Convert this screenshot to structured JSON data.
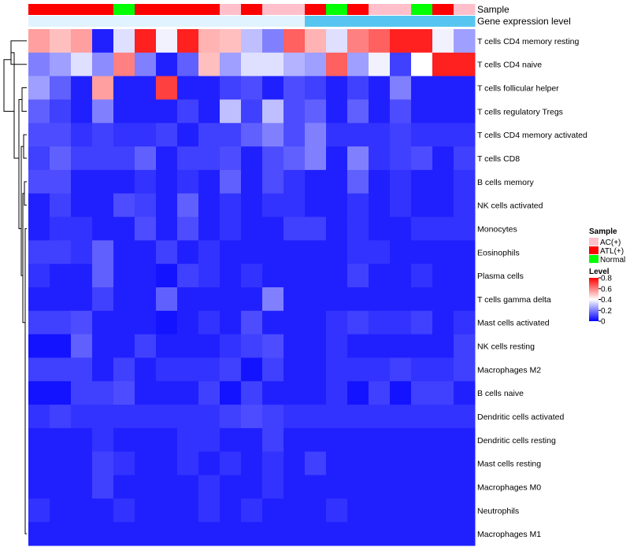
{
  "chart_data": {
    "type": "heatmap",
    "annotation_tracks": [
      {
        "name": "Sample",
        "values": [
          "ATL(+)",
          "ATL(+)",
          "ATL(+)",
          "ATL(+)",
          "Normal",
          "ATL(+)",
          "ATL(+)",
          "ATL(+)",
          "ATL(+)",
          "AC(+)",
          "ATL(+)",
          "AC(+)",
          "AC(+)",
          "ATL(+)",
          "Normal",
          "ATL(+)",
          "AC(+)",
          "AC(+)",
          "Normal",
          "ATL(+)",
          "AC(+)"
        ]
      },
      {
        "name": "Gene expression level",
        "values": [
          "low",
          "low",
          "low",
          "low",
          "low",
          "low",
          "low",
          "low",
          "low",
          "low",
          "low",
          "low",
          "low",
          "high",
          "high",
          "high",
          "high",
          "high",
          "high",
          "high",
          "high"
        ]
      }
    ],
    "rows": [
      "T cells CD4 memory resting",
      "T cells CD4 naive",
      "T cells follicular helper",
      "T cells regulatory  Tregs",
      "T cells CD4 memory activated",
      "T cells CD8",
      "B cells memory",
      "NK cells activated",
      "Monocytes",
      "Eosinophils",
      "Plasma cells",
      "T cells gamma delta",
      "Mast cells activated",
      "NK cells resting",
      "Macrophages M2",
      "B cells naive",
      "Dendritic cells activated",
      "Dendritic cells resting",
      "Mast cells resting",
      "Macrophages M0",
      "Neutrophils",
      "Macrophages M1"
    ],
    "values": [
      [
        0.55,
        0.5,
        0.55,
        0.05,
        0.35,
        0.75,
        0.38,
        0.75,
        0.52,
        0.5,
        0.3,
        0.2,
        0.65,
        0.52,
        0.35,
        0.6,
        0.65,
        0.75,
        0.75,
        0.38,
        0.25
      ],
      [
        0.2,
        0.25,
        0.35,
        0.22,
        0.6,
        0.2,
        0.05,
        0.15,
        0.5,
        0.25,
        0.35,
        0.35,
        0.28,
        0.25,
        0.65,
        0.25,
        0.38,
        0.1,
        0.4,
        0.75,
        0.75
      ],
      [
        0.25,
        0.15,
        0.05,
        0.55,
        0.05,
        0.05,
        0.7,
        0.05,
        0.05,
        0.1,
        0.12,
        0.05,
        0.12,
        0.1,
        0.05,
        0.1,
        0.05,
        0.2,
        0.05,
        0.05,
        0.05
      ],
      [
        0.15,
        0.1,
        0.05,
        0.2,
        0.05,
        0.05,
        0.05,
        0.1,
        0.05,
        0.3,
        0.1,
        0.3,
        0.12,
        0.15,
        0.05,
        0.15,
        0.05,
        0.12,
        0.05,
        0.05,
        0.05
      ],
      [
        0.12,
        0.12,
        0.08,
        0.1,
        0.08,
        0.08,
        0.1,
        0.05,
        0.1,
        0.1,
        0.15,
        0.2,
        0.12,
        0.2,
        0.08,
        0.08,
        0.08,
        0.1,
        0.08,
        0.08,
        0.08
      ],
      [
        0.1,
        0.15,
        0.1,
        0.1,
        0.1,
        0.15,
        0.05,
        0.1,
        0.1,
        0.12,
        0.05,
        0.12,
        0.15,
        0.2,
        0.05,
        0.2,
        0.08,
        0.1,
        0.12,
        0.05,
        0.1
      ],
      [
        0.12,
        0.12,
        0.05,
        0.05,
        0.05,
        0.08,
        0.05,
        0.08,
        0.05,
        0.15,
        0.05,
        0.12,
        0.08,
        0.05,
        0.05,
        0.15,
        0.05,
        0.08,
        0.05,
        0.05,
        0.08
      ],
      [
        0.05,
        0.1,
        0.05,
        0.05,
        0.12,
        0.1,
        0.05,
        0.15,
        0.05,
        0.08,
        0.05,
        0.08,
        0.08,
        0.05,
        0.05,
        0.08,
        0.05,
        0.08,
        0.05,
        0.05,
        0.08
      ],
      [
        0.05,
        0.08,
        0.08,
        0.05,
        0.05,
        0.12,
        0.05,
        0.12,
        0.05,
        0.08,
        0.05,
        0.05,
        0.1,
        0.1,
        0.05,
        0.08,
        0.05,
        0.05,
        0.08,
        0.08,
        0.08
      ],
      [
        0.1,
        0.1,
        0.08,
        0.15,
        0.05,
        0.05,
        0.1,
        0.05,
        0.08,
        0.05,
        0.05,
        0.05,
        0.05,
        0.05,
        0.05,
        0.08,
        0.08,
        0.05,
        0.05,
        0.05,
        0.05
      ],
      [
        0.08,
        0.05,
        0.05,
        0.15,
        0.05,
        0.05,
        0.03,
        0.1,
        0.08,
        0.05,
        0.08,
        0.05,
        0.05,
        0.05,
        0.05,
        0.1,
        0.05,
        0.05,
        0.08,
        0.05,
        0.05
      ],
      [
        0.05,
        0.05,
        0.05,
        0.1,
        0.05,
        0.05,
        0.15,
        0.05,
        0.05,
        0.05,
        0.05,
        0.2,
        0.05,
        0.05,
        0.05,
        0.05,
        0.05,
        0.05,
        0.05,
        0.05,
        0.05
      ],
      [
        0.1,
        0.1,
        0.12,
        0.05,
        0.05,
        0.05,
        0.03,
        0.05,
        0.08,
        0.05,
        0.12,
        0.05,
        0.05,
        0.05,
        0.08,
        0.1,
        0.08,
        0.08,
        0.1,
        0.05,
        0.08
      ],
      [
        0.03,
        0.03,
        0.15,
        0.05,
        0.05,
        0.1,
        0.05,
        0.05,
        0.05,
        0.08,
        0.1,
        0.12,
        0.05,
        0.05,
        0.08,
        0.05,
        0.05,
        0.05,
        0.05,
        0.05,
        0.1
      ],
      [
        0.1,
        0.1,
        0.1,
        0.05,
        0.1,
        0.05,
        0.08,
        0.08,
        0.08,
        0.1,
        0.03,
        0.1,
        0.05,
        0.05,
        0.08,
        0.08,
        0.08,
        0.1,
        0.08,
        0.08,
        0.1
      ],
      [
        0.03,
        0.03,
        0.1,
        0.1,
        0.12,
        0.05,
        0.05,
        0.05,
        0.1,
        0.03,
        0.1,
        0.05,
        0.05,
        0.05,
        0.08,
        0.03,
        0.1,
        0.03,
        0.1,
        0.1,
        0.05
      ],
      [
        0.08,
        0.1,
        0.08,
        0.08,
        0.08,
        0.08,
        0.08,
        0.08,
        0.08,
        0.1,
        0.12,
        0.1,
        0.08,
        0.08,
        0.08,
        0.08,
        0.08,
        0.08,
        0.08,
        0.08,
        0.08
      ],
      [
        0.05,
        0.05,
        0.05,
        0.08,
        0.05,
        0.05,
        0.05,
        0.08,
        0.08,
        0.05,
        0.05,
        0.1,
        0.05,
        0.05,
        0.05,
        0.05,
        0.05,
        0.05,
        0.05,
        0.05,
        0.05
      ],
      [
        0.05,
        0.05,
        0.05,
        0.1,
        0.08,
        0.05,
        0.05,
        0.08,
        0.05,
        0.08,
        0.05,
        0.08,
        0.05,
        0.1,
        0.05,
        0.05,
        0.05,
        0.05,
        0.05,
        0.05,
        0.05
      ],
      [
        0.05,
        0.05,
        0.05,
        0.1,
        0.05,
        0.05,
        0.05,
        0.05,
        0.08,
        0.05,
        0.05,
        0.08,
        0.05,
        0.05,
        0.05,
        0.05,
        0.05,
        0.05,
        0.05,
        0.05,
        0.05
      ],
      [
        0.08,
        0.05,
        0.05,
        0.05,
        0.08,
        0.05,
        0.05,
        0.05,
        0.08,
        0.05,
        0.08,
        0.05,
        0.05,
        0.05,
        0.08,
        0.05,
        0.05,
        0.05,
        0.05,
        0.05,
        0.05
      ],
      [
        0.05,
        0.05,
        0.05,
        0.05,
        0.05,
        0.05,
        0.05,
        0.05,
        0.05,
        0.05,
        0.05,
        0.05,
        0.05,
        0.05,
        0.05,
        0.05,
        0.05,
        0.05,
        0.05,
        0.05,
        0.05
      ]
    ],
    "color_scale": {
      "min": 0,
      "max": 0.8,
      "colors": [
        "#0000ff",
        "#ffffff",
        "#ff0000"
      ]
    },
    "legend": {
      "sample_title": "Sample",
      "sample_items": [
        {
          "label": "AC(+)",
          "color": "#ffc0cb"
        },
        {
          "label": "ATL(+)",
          "color": "#ff0000"
        },
        {
          "label": "Normal",
          "color": "#00ff00"
        }
      ],
      "level_title": "Level",
      "level_ticks": [
        "0.8",
        "0.6",
        "0.4",
        "0.2",
        "0"
      ],
      "placement": "right"
    },
    "gene_level_colors": {
      "low": "#e0f3ff",
      "high": "#56c6f0"
    },
    "dendrogram": "rows"
  }
}
